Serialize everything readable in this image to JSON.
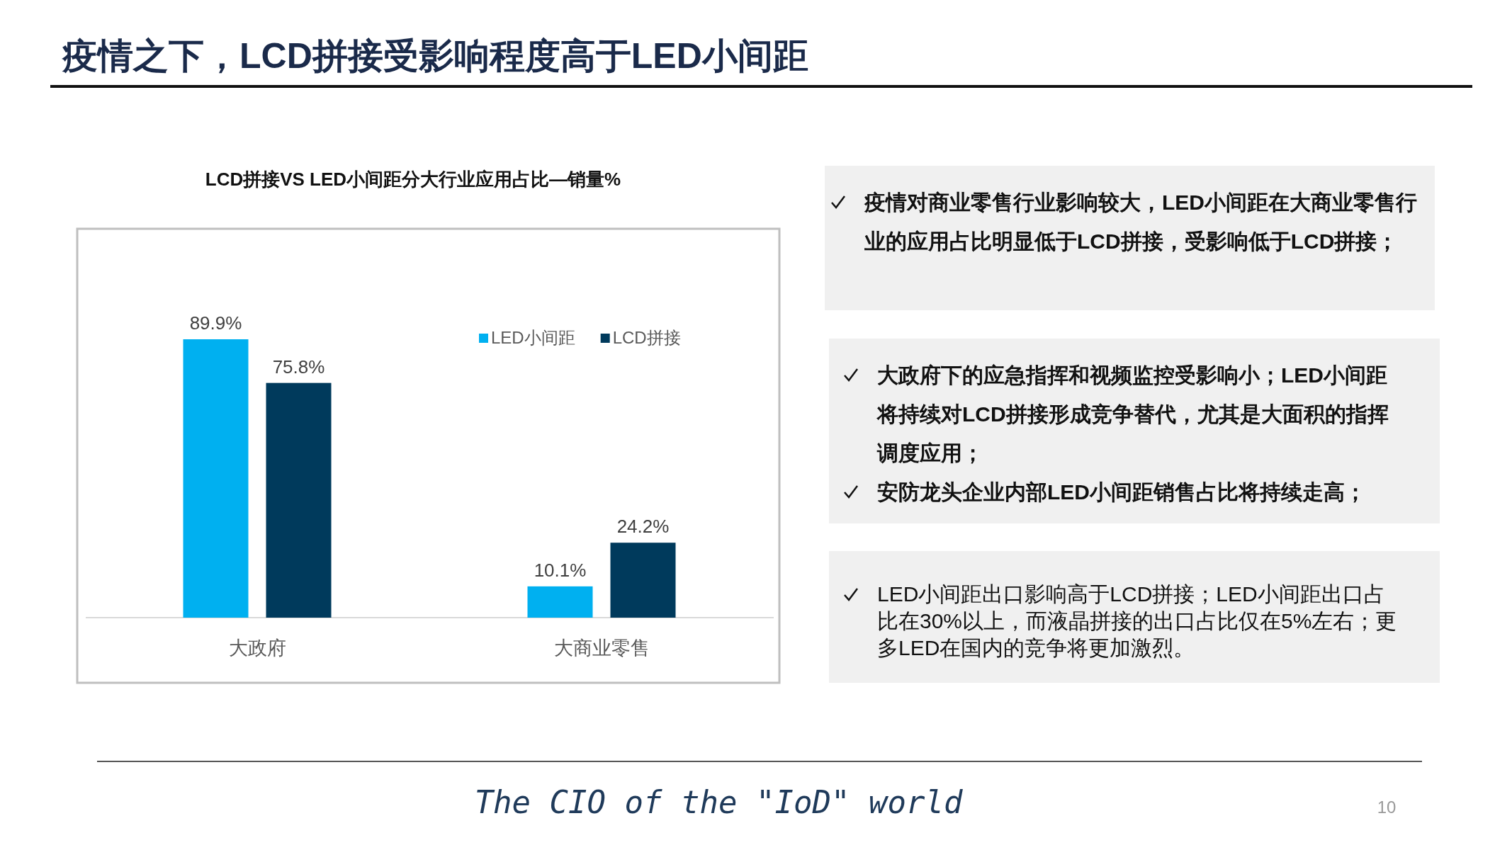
{
  "chart_data": {
    "type": "bar",
    "title": "疫情之下，LCD拼接受影响程度高于LED小间距",
    "subtitle": "LCD拼接VS LED小间距分大行业应用占比—销量%",
    "categories": [
      "大政府",
      "大商业零售"
    ],
    "series": [
      {
        "name": "LED小间距",
        "color": "#00b0f0",
        "values": [
          89.9,
          10.1
        ],
        "value_labels": [
          "89.9%",
          "10.1%"
        ]
      },
      {
        "name": "LCD拼接",
        "color": "#003a5c",
        "values": [
          75.8,
          24.2
        ],
        "value_labels": [
          "75.8%",
          "24.2%"
        ]
      }
    ],
    "legend": "top right",
    "annotations": [
      "疫情对商业零售行业影响较大，LED小间距在大商业零售行业的应用占比明显低于LCD拼接，受影响低于LCD拼接；",
      "大政府下的应急指挥和视频监控受影响小；LED小间距将持续对LCD拼接形成竞争替代，尤其是大面积的指挥调度应用；",
      "安防龙头企业内部LED小间距销售占比将持续走高；",
      "LED小间距出口影响高于LCD拼接；LED小间距出口占比在30%以上，而液晶拼接的出口占比仅在5%左右；更多LED在国内的竞争将更加激烈。",
      "The CIO of the \"IoD\" world",
      "10"
    ]
  }
}
